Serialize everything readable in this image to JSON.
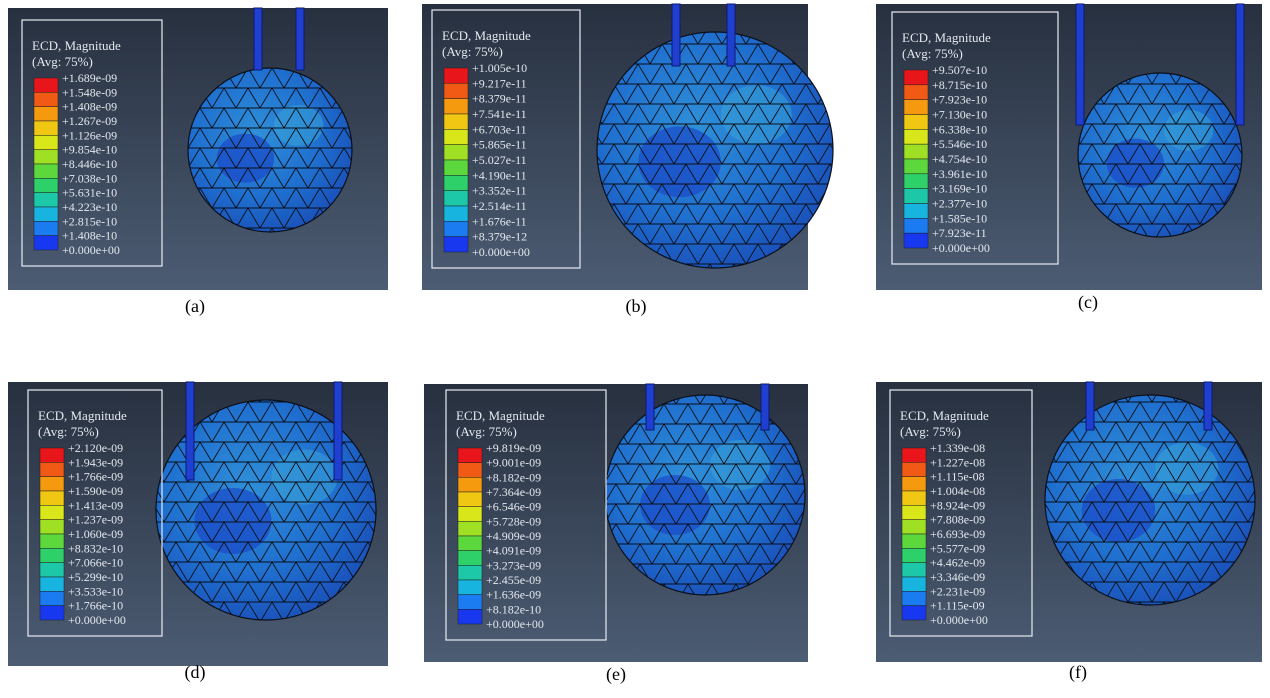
{
  "panels": [
    {
      "legend_title": "ECD, Magnitude",
      "legend_subtitle": "(Avg: 75%)",
      "caption": "(a)",
      "levels": [
        "+1.689e-09",
        "+1.548e-09",
        "+1.408e-09",
        "+1.267e-09",
        "+1.126e-09",
        "+9.854e-10",
        "+8.446e-10",
        "+7.038e-10",
        "+5.631e-10",
        "+4.223e-10",
        "+2.815e-10",
        "+1.408e-10",
        "+0.000e+00"
      ]
    },
    {
      "legend_title": "ECD, Magnitude",
      "legend_subtitle": "(Avg: 75%)",
      "caption": "(b)",
      "levels": [
        "+1.005e-10",
        "+9.217e-11",
        "+8.379e-11",
        "+7.541e-11",
        "+6.703e-11",
        "+5.865e-11",
        "+5.027e-11",
        "+4.190e-11",
        "+3.352e-11",
        "+2.514e-11",
        "+1.676e-11",
        "+8.379e-12",
        "+0.000e+00"
      ]
    },
    {
      "legend_title": "ECD, Magnitude",
      "legend_subtitle": "(Avg: 75%)",
      "caption": "(c)",
      "levels": [
        "+9.507e-10",
        "+8.715e-10",
        "+7.923e-10",
        "+7.130e-10",
        "+6.338e-10",
        "+5.546e-10",
        "+4.754e-10",
        "+3.961e-10",
        "+3.169e-10",
        "+2.377e-10",
        "+1.585e-10",
        "+7.923e-11",
        "+0.000e+00"
      ]
    },
    {
      "legend_title": "ECD, Magnitude",
      "legend_subtitle": "(Avg: 75%)",
      "caption": "(d)",
      "levels": [
        "+2.120e-09",
        "+1.943e-09",
        "+1.766e-09",
        "+1.590e-09",
        "+1.413e-09",
        "+1.237e-09",
        "+1.060e-09",
        "+8.832e-10",
        "+7.066e-10",
        "+5.299e-10",
        "+3.533e-10",
        "+1.766e-10",
        "+0.000e+00"
      ]
    },
    {
      "legend_title": "ECD, Magnitude",
      "legend_subtitle": "(Avg: 75%)",
      "caption": "(e)",
      "levels": [
        "+9.819e-09",
        "+9.001e-09",
        "+8.182e-09",
        "+7.364e-09",
        "+6.546e-09",
        "+5.728e-09",
        "+4.909e-09",
        "+4.091e-09",
        "+3.273e-09",
        "+2.455e-09",
        "+1.636e-09",
        "+8.182e-10",
        "+0.000e+00"
      ]
    },
    {
      "legend_title": "ECD, Magnitude",
      "legend_subtitle": "(Avg: 75%)",
      "caption": "(f)",
      "levels": [
        "+1.339e-08",
        "+1.227e-08",
        "+1.115e-08",
        "+1.004e-08",
        "+8.924e-09",
        "+7.808e-09",
        "+6.693e-09",
        "+5.577e-09",
        "+4.462e-09",
        "+3.346e-09",
        "+2.231e-09",
        "+1.115e-09",
        "+0.000e+00"
      ]
    }
  ]
}
